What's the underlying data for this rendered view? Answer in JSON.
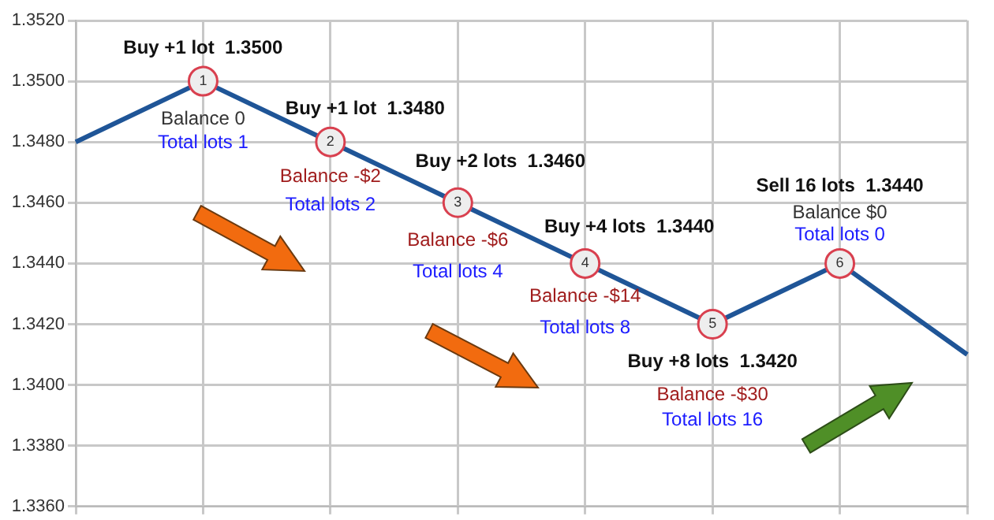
{
  "chart_data": {
    "type": "line",
    "categories": [
      null,
      null,
      null,
      null,
      null,
      null,
      null,
      null
    ],
    "series": [
      {
        "color": "#1f5597",
        "values": [
          1.348,
          1.35,
          1.348,
          1.346,
          1.344,
          1.342,
          1.344,
          1.341
        ]
      }
    ],
    "ylim": [
      1.336,
      1.352
    ],
    "yticks": [
      {
        "value": 1.336,
        "label": "1.3360"
      },
      {
        "value": 1.338,
        "label": "1.3380"
      },
      {
        "value": 1.34,
        "label": "1.3400"
      },
      {
        "value": 1.342,
        "label": "1.3420"
      },
      {
        "value": 1.344,
        "label": "1.3440"
      },
      {
        "value": 1.346,
        "label": "1.3460"
      },
      {
        "value": 1.348,
        "label": "1.3480"
      },
      {
        "value": 1.35,
        "label": "1.3500"
      },
      {
        "value": 1.352,
        "label": "1.3520"
      }
    ],
    "grid": true,
    "marker": "circle",
    "line_style": "solid",
    "tick_labels": "y",
    "annotations": [
      "Buy +1 lot  1.3500",
      "Balance 0",
      "Total lots 1",
      "Buy +1 lot  1.3480",
      "Balance -$2",
      "Total lots 2",
      "Buy +2 lots  1.3460",
      "Balance -$6",
      "Total lots 4",
      "Buy +4 lots  1.3440",
      "Balance -$14",
      "Total lots 8",
      "Buy +8 lots  1.3420",
      "Balance -$30",
      "Total lots 16",
      "Sell 16 lots  1.3440",
      "Balance $0",
      "Total lots 0",
      "1",
      "2",
      "3",
      "4",
      "5",
      "6"
    ]
  }
}
